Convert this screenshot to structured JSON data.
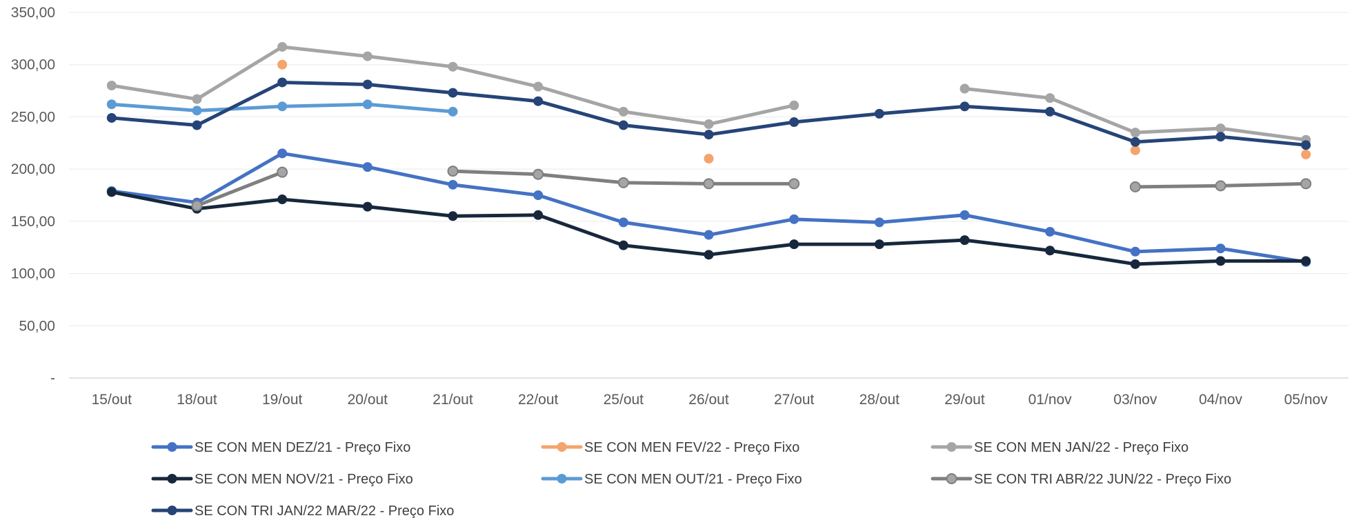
{
  "chart_data": {
    "type": "line",
    "title": "",
    "xlabel": "",
    "ylabel": "",
    "ylim": [
      0,
      350
    ],
    "y_ticks": [
      0,
      50,
      100,
      150,
      200,
      250,
      300,
      350
    ],
    "y_tick_labels": [
      "-",
      "50,00",
      "100,00",
      "150,00",
      "200,00",
      "250,00",
      "300,00",
      "350,00"
    ],
    "grid": "horizontal",
    "legend_position": "bottom",
    "categories": [
      "15/out",
      "18/out",
      "19/out",
      "20/out",
      "21/out",
      "22/out",
      "25/out",
      "26/out",
      "27/out",
      "28/out",
      "29/out",
      "01/nov",
      "03/nov",
      "04/nov",
      "05/nov"
    ],
    "series": [
      {
        "name": "SE CON MEN DEZ/21 - Preço Fixo",
        "color": "#4472C4",
        "values": [
          179,
          168,
          215,
          202,
          185,
          175,
          149,
          137,
          152,
          149,
          156,
          140,
          121,
          124,
          111
        ]
      },
      {
        "name": "SE CON MEN FEV/22 - Preço Fixo",
        "color": "#F4A46C",
        "values": [
          null,
          null,
          300,
          null,
          null,
          null,
          null,
          210,
          null,
          null,
          null,
          null,
          218,
          null,
          214
        ]
      },
      {
        "name": "SE CON MEN JAN/22 - Preço Fixo",
        "color": "#A5A5A5",
        "values": [
          280,
          267,
          317,
          308,
          298,
          279,
          255,
          243,
          261,
          null,
          277,
          268,
          235,
          239,
          228
        ]
      },
      {
        "name": "SE CON MEN NOV/21 - Preço Fixo",
        "color": "#17283D",
        "values": [
          178,
          162,
          171,
          164,
          155,
          156,
          127,
          118,
          128,
          128,
          132,
          122,
          109,
          112,
          112
        ]
      },
      {
        "name": "SE CON MEN OUT/21 - Preço Fixo",
        "color": "#5B9BD5",
        "values": [
          262,
          256,
          260,
          262,
          255,
          null,
          null,
          null,
          null,
          null,
          null,
          null,
          null,
          null,
          null
        ]
      },
      {
        "name": "SE CON TRI ABR/22 JUN/22 - Preço Fixo",
        "color": "#7F7F7F",
        "marker_fill": "#A5A5A5",
        "values": [
          null,
          165,
          197,
          null,
          198,
          195,
          187,
          186,
          186,
          null,
          null,
          null,
          183,
          184,
          186
        ]
      },
      {
        "name": "SE CON TRI JAN/22 MAR/22 - Preço Fixo",
        "color": "#264478",
        "values": [
          249,
          242,
          283,
          281,
          273,
          265,
          242,
          233,
          245,
          253,
          260,
          255,
          226,
          231,
          223
        ]
      }
    ]
  }
}
